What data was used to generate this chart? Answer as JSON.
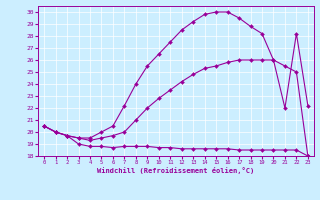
{
  "xlabel": "Windchill (Refroidissement éolien,°C)",
  "xlim": [
    -0.5,
    23.5
  ],
  "ylim": [
    18,
    30.5
  ],
  "yticks": [
    18,
    19,
    20,
    21,
    22,
    23,
    24,
    25,
    26,
    27,
    28,
    29,
    30
  ],
  "xticks": [
    0,
    1,
    2,
    3,
    4,
    5,
    6,
    7,
    8,
    9,
    10,
    11,
    12,
    13,
    14,
    15,
    16,
    17,
    18,
    19,
    20,
    21,
    22,
    23
  ],
  "bg_color": "#cceeff",
  "line_color": "#990099",
  "line_width": 0.8,
  "marker": "D",
  "marker_size": 2.0,
  "series": [
    {
      "x": [
        0,
        1,
        2,
        3,
        4,
        5,
        6,
        7,
        8,
        9,
        10,
        11,
        12,
        13,
        14,
        15,
        16,
        17,
        18,
        19,
        20,
        21,
        22,
        23
      ],
      "y": [
        20.5,
        20.0,
        19.7,
        19.0,
        18.8,
        18.8,
        18.7,
        18.8,
        18.8,
        18.8,
        18.7,
        18.7,
        18.6,
        18.6,
        18.6,
        18.6,
        18.6,
        18.5,
        18.5,
        18.5,
        18.5,
        18.5,
        18.5,
        18.0
      ]
    },
    {
      "x": [
        0,
        1,
        2,
        3,
        4,
        5,
        6,
        7,
        8,
        9,
        10,
        11,
        12,
        13,
        14,
        15,
        16,
        17,
        18,
        19,
        20,
        21,
        22,
        23
      ],
      "y": [
        20.5,
        20.0,
        19.7,
        19.5,
        19.3,
        19.5,
        19.7,
        20.0,
        21.0,
        22.0,
        22.8,
        23.5,
        24.2,
        24.8,
        25.3,
        25.5,
        25.8,
        26.0,
        26.0,
        26.0,
        26.0,
        25.5,
        25.0,
        18.0
      ]
    },
    {
      "x": [
        0,
        1,
        2,
        3,
        4,
        5,
        6,
        7,
        8,
        9,
        10,
        11,
        12,
        13,
        14,
        15,
        16,
        17,
        18,
        19,
        20,
        21,
        22,
        23
      ],
      "y": [
        20.5,
        20.0,
        19.7,
        19.5,
        19.5,
        20.0,
        20.5,
        22.2,
        24.0,
        25.5,
        26.5,
        27.5,
        28.5,
        29.2,
        29.8,
        30.0,
        30.0,
        29.5,
        28.8,
        28.2,
        26.0,
        22.0,
        28.2,
        22.2
      ]
    }
  ]
}
